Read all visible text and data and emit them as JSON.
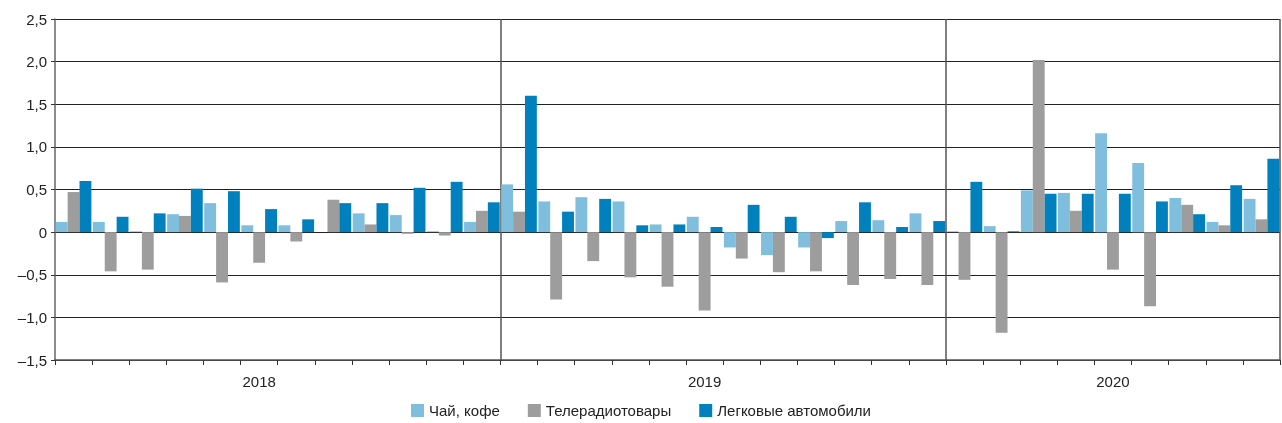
{
  "chart_data": {
    "type": "bar",
    "categories": [
      null,
      null,
      null,
      null,
      null,
      "2018",
      null,
      null,
      null,
      null,
      null,
      null,
      null,
      null,
      null,
      null,
      null,
      "2019",
      null,
      null,
      null,
      null,
      null,
      null,
      null,
      null,
      null,
      null,
      "2020",
      null,
      null,
      null,
      null
    ],
    "series": [
      {
        "name": "Чай, кофе",
        "color": "#7fbfdd",
        "values": [
          0.12,
          0.12,
          0.01,
          0.21,
          0.34,
          0.08,
          0.08,
          0,
          0.22,
          0.2,
          0.01,
          0.12,
          0.56,
          0.36,
          0.41,
          0.36,
          0.09,
          0.18,
          -0.18,
          -0.27,
          -0.18,
          0.13,
          0.14,
          0.22,
          0.01,
          0.07,
          0.49,
          0.46,
          1.16,
          0.81,
          0.4,
          0.12,
          0.39
        ]
      },
      {
        "name": "Телерадиотовары",
        "color": "#9d9d9d",
        "values": [
          0.47,
          -0.46,
          -0.44,
          0.19,
          -0.59,
          -0.36,
          -0.11,
          0.38,
          0.09,
          -0.02,
          -0.04,
          0.25,
          0.24,
          -0.79,
          -0.34,
          -0.53,
          -0.64,
          -0.92,
          -0.31,
          -0.47,
          -0.46,
          -0.62,
          -0.55,
          -0.62,
          -0.56,
          -1.18,
          2.02,
          0.25,
          -0.44,
          -0.87,
          0.32,
          0.08,
          0.15
        ]
      },
      {
        "name": "Легковые автомобили",
        "color": "#0080bd",
        "values": [
          0.6,
          0.18,
          0.22,
          0.51,
          0.48,
          0.27,
          0.15,
          0.34,
          0.34,
          0.52,
          0.59,
          0.35,
          1.6,
          0.24,
          0.39,
          0.08,
          0.09,
          0.06,
          0.32,
          0.18,
          -0.07,
          0.35,
          0.06,
          0.13,
          0.59,
          0.01,
          0.45,
          0.45,
          0.45,
          0.36,
          0.21,
          0.55,
          0.86
        ]
      }
    ],
    "ylim": [
      -1.5,
      2.5
    ],
    "yticks": [
      {
        "value": -1.5,
        "label": "–1,5"
      },
      {
        "value": -1,
        "label": "–1,0"
      },
      {
        "value": -0.5,
        "label": "–0,5"
      },
      0,
      {
        "value": 0.5,
        "label": "0,5"
      },
      {
        "value": 1,
        "label": "1,0"
      },
      {
        "value": 1.5,
        "label": "1,5"
      },
      {
        "value": 2,
        "label": "2,0"
      },
      {
        "value": 2.5,
        "label": "2,5"
      }
    ],
    "grid": true,
    "legend": "bottom"
  }
}
